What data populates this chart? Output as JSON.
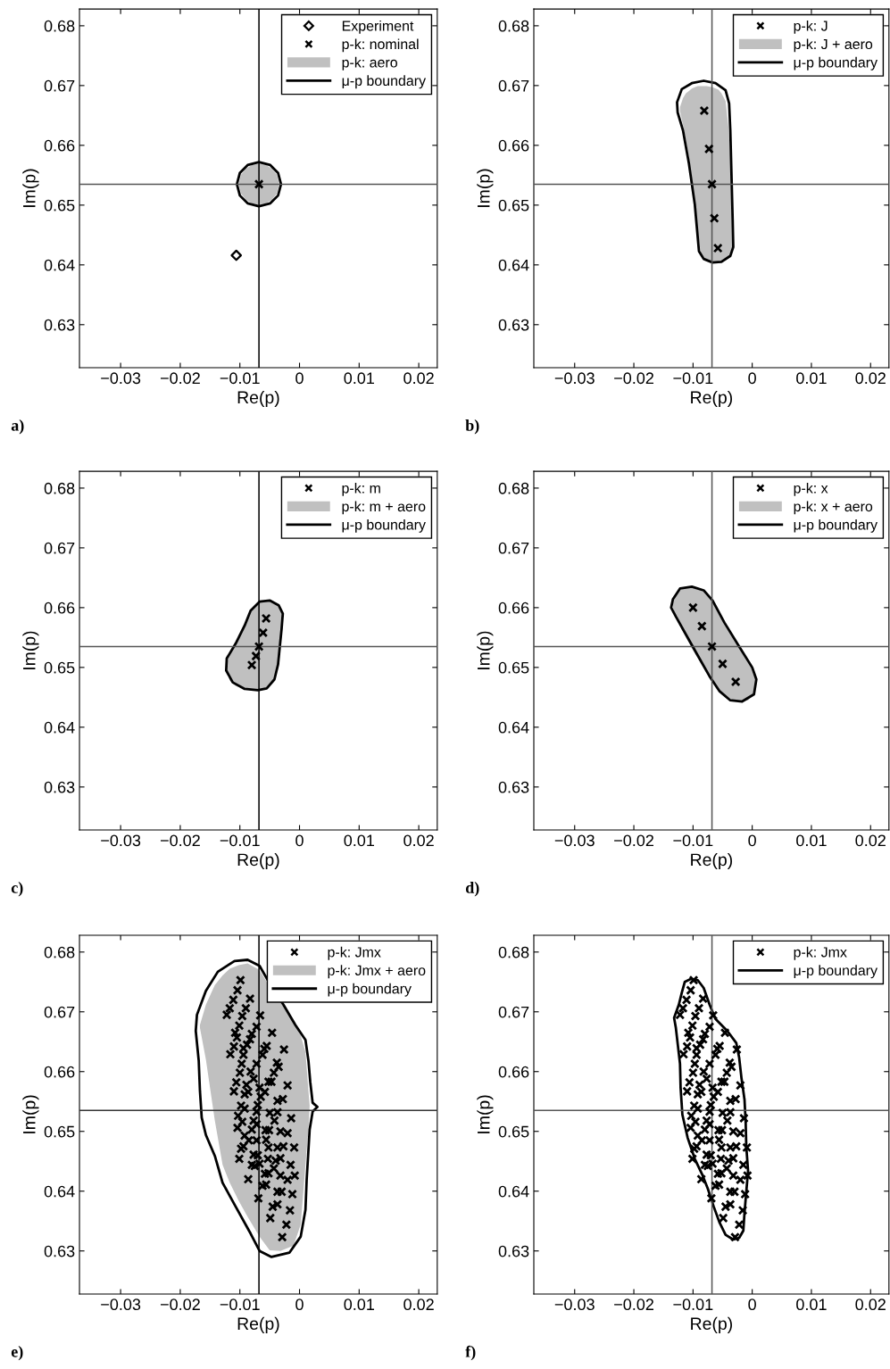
{
  "chart_data": [
    {
      "type": "scatter",
      "xlabel": "Re(p)",
      "ylabel": "Im(p)",
      "xlim": [
        -0.0369,
        0.0231
      ],
      "ylim": [
        0.6228,
        0.6828
      ],
      "xticks": [
        {
          "value": -0.03,
          "label": "−0.03"
        },
        {
          "value": -0.02,
          "label": "−0.02"
        },
        {
          "value": -0.01,
          "label": "−0.01"
        },
        0,
        0.01,
        0.02
      ],
      "yticks": [
        0.63,
        0.64,
        0.65,
        0.66,
        0.67,
        0.68
      ],
      "ref_lines": [
        {
          "axis": "x",
          "value": -0.0068,
          "color": "#000000"
        },
        {
          "axis": "y",
          "value": 0.6535,
          "color": "#555555"
        }
      ],
      "legend": "top right",
      "annotations": [
        "a)"
      ],
      "series": [
        {
          "name": "Experiment",
          "marker": "diamond",
          "color": "#000000",
          "x": [
            -0.0106
          ],
          "values": [
            0.6416
          ]
        },
        {
          "name": "p-k: nominal",
          "marker": "cross",
          "color": "#000000",
          "x": [
            -0.0068
          ],
          "values": [
            0.6535
          ]
        },
        {
          "name": "p-k: aero",
          "type": "area",
          "color": "#c0c0c0"
        },
        {
          "name": "μ-p boundary",
          "type": "line",
          "line_style": "solid",
          "color": "#000000"
        }
      ]
    },
    {
      "type": "scatter",
      "xlabel": "Re(p)",
      "ylabel": "Im(p)",
      "xlim": [
        -0.0369,
        0.0231
      ],
      "ylim": [
        0.6228,
        0.6828
      ],
      "xticks": [
        {
          "value": -0.03,
          "label": "−0.03"
        },
        {
          "value": -0.02,
          "label": "−0.02"
        },
        {
          "value": -0.01,
          "label": "−0.01"
        },
        0,
        0.01,
        0.02
      ],
      "yticks": [
        0.63,
        0.64,
        0.65,
        0.66,
        0.67,
        0.68
      ],
      "ref_lines": [
        {
          "axis": "x",
          "value": -0.0068,
          "color": "#555555"
        },
        {
          "axis": "y",
          "value": 0.6535,
          "color": "#555555"
        }
      ],
      "legend": "top right",
      "annotations": [
        "b)"
      ],
      "series": [
        {
          "name": "p-k: J",
          "marker": "cross",
          "color": "#000000",
          "x": [
            -0.0081,
            -0.0073,
            -0.0068,
            -0.0064,
            -0.0058
          ],
          "values": [
            0.6658,
            0.6594,
            0.6535,
            0.6478,
            0.6428
          ]
        },
        {
          "name": "p-k: J + aero",
          "type": "area",
          "color": "#c0c0c0"
        },
        {
          "name": "μ-p boundary",
          "type": "line",
          "line_style": "solid",
          "color": "#000000"
        }
      ]
    },
    {
      "type": "scatter",
      "xlabel": "Re(p)",
      "ylabel": "Im(p)",
      "xlim": [
        -0.0369,
        0.0231
      ],
      "ylim": [
        0.6228,
        0.6828
      ],
      "xticks": [
        {
          "value": -0.03,
          "label": "−0.03"
        },
        {
          "value": -0.02,
          "label": "−0.02"
        },
        {
          "value": -0.01,
          "label": "−0.01"
        },
        0,
        0.01,
        0.02
      ],
      "yticks": [
        0.63,
        0.64,
        0.65,
        0.66,
        0.67,
        0.68
      ],
      "ref_lines": [
        {
          "axis": "x",
          "value": -0.0068,
          "color": "#000000"
        },
        {
          "axis": "y",
          "value": 0.6535,
          "color": "#555555"
        }
      ],
      "legend": "top right",
      "annotations": [
        "c)"
      ],
      "series": [
        {
          "name": "p-k: m",
          "marker": "cross",
          "color": "#000000",
          "x": [
            -0.0056,
            -0.0061,
            -0.0068,
            -0.0073,
            -0.008
          ],
          "values": [
            0.6582,
            0.6558,
            0.6535,
            0.6519,
            0.6504
          ]
        },
        {
          "name": "p-k: m + aero",
          "type": "area",
          "color": "#c0c0c0"
        },
        {
          "name": "μ-p boundary",
          "type": "line",
          "line_style": "solid",
          "color": "#000000"
        }
      ]
    },
    {
      "type": "scatter",
      "xlabel": "Re(p)",
      "ylabel": "Im(p)",
      "xlim": [
        -0.0369,
        0.0231
      ],
      "ylim": [
        0.6228,
        0.6828
      ],
      "xticks": [
        {
          "value": -0.03,
          "label": "−0.03"
        },
        {
          "value": -0.02,
          "label": "−0.02"
        },
        {
          "value": -0.01,
          "label": "−0.01"
        },
        0,
        0.01,
        0.02
      ],
      "yticks": [
        0.63,
        0.64,
        0.65,
        0.66,
        0.67,
        0.68
      ],
      "ref_lines": [
        {
          "axis": "x",
          "value": -0.0068,
          "color": "#555555"
        },
        {
          "axis": "y",
          "value": 0.6535,
          "color": "#555555"
        }
      ],
      "legend": "top right",
      "annotations": [
        "d)"
      ],
      "series": [
        {
          "name": "p-k: x",
          "marker": "cross",
          "color": "#000000",
          "x": [
            -0.01,
            -0.0085,
            -0.0068,
            -0.005,
            -0.0028
          ],
          "values": [
            0.66,
            0.6569,
            0.6535,
            0.6506,
            0.6476
          ]
        },
        {
          "name": "p-k: x + aero",
          "type": "area",
          "color": "#c0c0c0"
        },
        {
          "name": "μ-p boundary",
          "type": "line",
          "line_style": "solid",
          "color": "#000000"
        }
      ]
    },
    {
      "type": "scatter",
      "xlabel": "Re(p)",
      "ylabel": "Im(p)",
      "xlim": [
        -0.0369,
        0.0231
      ],
      "ylim": [
        0.6228,
        0.6828
      ],
      "xticks": [
        {
          "value": -0.03,
          "label": "−0.03"
        },
        {
          "value": -0.02,
          "label": "−0.02"
        },
        {
          "value": -0.01,
          "label": "−0.01"
        },
        0,
        0.01,
        0.02
      ],
      "yticks": [
        0.63,
        0.64,
        0.65,
        0.66,
        0.67,
        0.68
      ],
      "ref_lines": [
        {
          "axis": "x",
          "value": -0.0068,
          "color": "#000000"
        },
        {
          "axis": "y",
          "value": 0.6535,
          "color": "#333333"
        }
      ],
      "legend": "top right",
      "annotations": [
        "e)"
      ],
      "series": [
        {
          "name": "p-k: Jmx",
          "marker": "cross",
          "color": "#000000",
          "x": [
            -0.0099,
            -0.0104,
            -0.0111,
            -0.0083,
            -0.0117,
            -0.0122,
            -0.009,
            -0.0096,
            -0.0066,
            -0.0101,
            -0.0108,
            -0.0072,
            -0.0046,
            -0.0105,
            -0.011,
            -0.0088,
            -0.0094,
            -0.008,
            -0.0083,
            -0.0116,
            -0.0094,
            -0.0055,
            -0.0059,
            -0.0026,
            -0.0097,
            -0.0072,
            -0.0062,
            -0.0038,
            -0.0035,
            -0.01,
            -0.0082,
            -0.0077,
            -0.0043,
            -0.0047,
            -0.0106,
            -0.0089,
            -0.0067,
            -0.0052,
            -0.002,
            -0.011,
            -0.0086,
            -0.0092,
            -0.0058,
            -0.0065,
            -0.0028,
            -0.0037,
            -0.0098,
            -0.0092,
            -0.0072,
            -0.007,
            -0.005,
            -0.0037,
            -0.0014,
            -0.0103,
            -0.0096,
            -0.0077,
            -0.0072,
            -0.0042,
            -0.0104,
            -0.008,
            -0.0057,
            -0.0051,
            -0.0032,
            -0.002,
            -0.0092,
            -0.0085,
            -0.0072,
            -0.0056,
            -0.0037,
            -0.0027,
            -0.0009,
            -0.0098,
            -0.0094,
            -0.0077,
            -0.007,
            -0.0052,
            -0.0101,
            -0.0053,
            -0.004,
            -0.0032,
            -0.0015,
            -0.008,
            -0.0075,
            -0.0058,
            -0.0052,
            -0.0032,
            -0.002,
            -0.0008,
            -0.0086,
            -0.0062,
            -0.0056,
            -0.0037,
            -0.003,
            -0.0012,
            -0.0069,
            -0.0045,
            -0.0037,
            -0.0016,
            -0.0049,
            -0.0022,
            -0.0029,
            -0.0043,
            -0.0067
          ],
          "values": [
            0.6753,
            0.6736,
            0.672,
            0.6722,
            0.6706,
            0.6695,
            0.6706,
            0.6693,
            0.6694,
            0.6677,
            0.6665,
            0.6675,
            0.6665,
            0.6657,
            0.6642,
            0.6645,
            0.6639,
            0.6663,
            0.6654,
            0.6629,
            0.6628,
            0.6643,
            0.6638,
            0.6637,
            0.6613,
            0.6613,
            0.6628,
            0.6615,
            0.6608,
            0.6598,
            0.66,
            0.6588,
            0.6598,
            0.6583,
            0.6582,
            0.6578,
            0.6573,
            0.6583,
            0.6577,
            0.6567,
            0.6566,
            0.6562,
            0.6566,
            0.6558,
            0.6554,
            0.6551,
            0.6543,
            0.6538,
            0.6533,
            0.6544,
            0.6531,
            0.6532,
            0.6522,
            0.6526,
            0.6516,
            0.6518,
            0.6512,
            0.6518,
            0.6506,
            0.6503,
            0.6502,
            0.6502,
            0.65,
            0.6497,
            0.6493,
            0.6485,
            0.6485,
            0.6486,
            0.6473,
            0.6475,
            0.6473,
            0.6471,
            0.6475,
            0.6461,
            0.646,
            0.6473,
            0.6454,
            0.6454,
            0.6451,
            0.6455,
            0.6444,
            0.6444,
            0.6442,
            0.6429,
            0.643,
            0.6426,
            0.6419,
            0.6426,
            0.642,
            0.6409,
            0.6411,
            0.6399,
            0.6399,
            0.6395,
            0.6388,
            0.6374,
            0.6378,
            0.6368,
            0.6355,
            0.6344,
            0.6323,
            0.6438,
            0.6446
          ]
        },
        {
          "name": "p-k: Jmx + aero",
          "type": "area",
          "color": "#c0c0c0"
        },
        {
          "name": "μ-p boundary",
          "type": "line",
          "line_style": "solid",
          "color": "#000000"
        }
      ]
    },
    {
      "type": "scatter",
      "xlabel": "Re(p)",
      "ylabel": "Im(p)",
      "xlim": [
        -0.0369,
        0.0231
      ],
      "ylim": [
        0.6228,
        0.6828
      ],
      "xticks": [
        {
          "value": -0.03,
          "label": "−0.03"
        },
        {
          "value": -0.02,
          "label": "−0.02"
        },
        {
          "value": -0.01,
          "label": "−0.01"
        },
        0,
        0.01,
        0.02
      ],
      "yticks": [
        0.63,
        0.64,
        0.65,
        0.66,
        0.67,
        0.68
      ],
      "ref_lines": [
        {
          "axis": "x",
          "value": -0.0068,
          "color": "#555555"
        },
        {
          "axis": "y",
          "value": 0.6535,
          "color": "#555555"
        }
      ],
      "legend": "top right",
      "annotations": [
        "f)"
      ],
      "series": [
        {
          "name": "p-k: Jmx",
          "marker": "cross",
          "color": "#000000",
          "x": [
            -0.0099,
            -0.0104,
            -0.0111,
            -0.0083,
            -0.0117,
            -0.0122,
            -0.009,
            -0.0096,
            -0.0066,
            -0.0101,
            -0.0108,
            -0.0072,
            -0.0046,
            -0.0105,
            -0.011,
            -0.0088,
            -0.0094,
            -0.008,
            -0.0083,
            -0.0116,
            -0.0094,
            -0.0055,
            -0.0059,
            -0.0026,
            -0.0097,
            -0.0072,
            -0.0062,
            -0.0038,
            -0.0035,
            -0.01,
            -0.0082,
            -0.0077,
            -0.0043,
            -0.0047,
            -0.0106,
            -0.0089,
            -0.0067,
            -0.0052,
            -0.002,
            -0.011,
            -0.0086,
            -0.0092,
            -0.0058,
            -0.0065,
            -0.0028,
            -0.0037,
            -0.0098,
            -0.0092,
            -0.0072,
            -0.007,
            -0.005,
            -0.0037,
            -0.0014,
            -0.0103,
            -0.0096,
            -0.0077,
            -0.0072,
            -0.0042,
            -0.0104,
            -0.008,
            -0.0057,
            -0.0051,
            -0.0032,
            -0.002,
            -0.0092,
            -0.0085,
            -0.0072,
            -0.0056,
            -0.0037,
            -0.0027,
            -0.0009,
            -0.0098,
            -0.0094,
            -0.0077,
            -0.007,
            -0.0052,
            -0.0101,
            -0.0053,
            -0.004,
            -0.0032,
            -0.0015,
            -0.008,
            -0.0075,
            -0.0058,
            -0.0052,
            -0.0032,
            -0.002,
            -0.0008,
            -0.0086,
            -0.0062,
            -0.0056,
            -0.0037,
            -0.003,
            -0.0012,
            -0.0069,
            -0.0045,
            -0.0037,
            -0.0016,
            -0.0049,
            -0.0022,
            -0.0029,
            -0.0043,
            -0.0067
          ],
          "values": [
            0.6753,
            0.6736,
            0.672,
            0.6722,
            0.6706,
            0.6695,
            0.6706,
            0.6693,
            0.6694,
            0.6677,
            0.6665,
            0.6675,
            0.6665,
            0.6657,
            0.6642,
            0.6645,
            0.6639,
            0.6663,
            0.6654,
            0.6629,
            0.6628,
            0.6643,
            0.6638,
            0.6637,
            0.6613,
            0.6613,
            0.6628,
            0.6615,
            0.6608,
            0.6598,
            0.66,
            0.6588,
            0.6598,
            0.6583,
            0.6582,
            0.6578,
            0.6573,
            0.6583,
            0.6577,
            0.6567,
            0.6566,
            0.6562,
            0.6566,
            0.6558,
            0.6554,
            0.6551,
            0.6543,
            0.6538,
            0.6533,
            0.6544,
            0.6531,
            0.6532,
            0.6522,
            0.6526,
            0.6516,
            0.6518,
            0.6512,
            0.6518,
            0.6506,
            0.6503,
            0.6502,
            0.6502,
            0.65,
            0.6497,
            0.6493,
            0.6485,
            0.6485,
            0.6486,
            0.6473,
            0.6475,
            0.6473,
            0.6471,
            0.6475,
            0.6461,
            0.646,
            0.6473,
            0.6454,
            0.6454,
            0.6451,
            0.6455,
            0.6444,
            0.6444,
            0.6442,
            0.6429,
            0.643,
            0.6426,
            0.6419,
            0.6426,
            0.642,
            0.6409,
            0.6411,
            0.6399,
            0.6399,
            0.6395,
            0.6388,
            0.6374,
            0.6378,
            0.6368,
            0.6355,
            0.6344,
            0.6323,
            0.6438,
            0.6446
          ]
        },
        {
          "name": "μ-p boundary",
          "type": "line",
          "line_style": "solid",
          "color": "#000000"
        }
      ]
    }
  ]
}
